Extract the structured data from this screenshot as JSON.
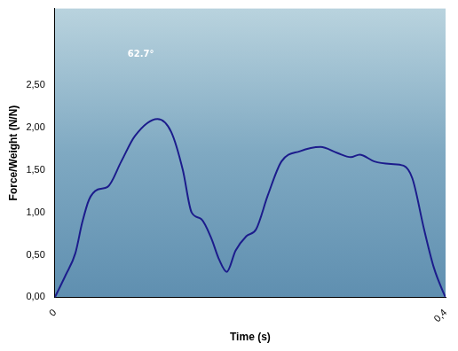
{
  "chart_data": {
    "type": "line",
    "x_label": "Time (s)",
    "y_label": "Force/Weight (N/N)",
    "annotation": "62.7°",
    "x": [
      0,
      0.011,
      0.021,
      0.028,
      0.035,
      0.044,
      0.054,
      0.068,
      0.082,
      0.105,
      0.119,
      0.131,
      0.14,
      0.15,
      0.16,
      0.168,
      0.176,
      0.185,
      0.196,
      0.206,
      0.218,
      0.232,
      0.251,
      0.272,
      0.289,
      0.303,
      0.312,
      0.327,
      0.344,
      0.357,
      0.366,
      0.378,
      0.388,
      0.398,
      0.4
    ],
    "values": [
      0,
      0.26,
      0.52,
      0.88,
      1.15,
      1.27,
      1.3,
      1.6,
      1.9,
      2.1,
      1.95,
      1.5,
      1.0,
      0.92,
      0.7,
      0.45,
      0.3,
      0.55,
      0.72,
      0.8,
      1.2,
      1.6,
      1.72,
      1.77,
      1.7,
      1.65,
      1.68,
      1.6,
      1.57,
      1.55,
      1.4,
      0.8,
      0.35,
      0.05,
      0
    ],
    "color": "#1c1c8c",
    "xlim": [
      0,
      0.4
    ],
    "xticks": [
      0,
      {
        "value": 0.4,
        "label": "0,4"
      }
    ],
    "ylim": [
      0,
      3.4
    ],
    "yticks": [
      {
        "value": 0,
        "label": "0,00"
      },
      {
        "value": 0.5,
        "label": "0,50"
      },
      {
        "value": 1,
        "label": "1,00"
      },
      {
        "value": 1.5,
        "label": "1,50"
      },
      {
        "value": 2,
        "label": "2,00"
      },
      {
        "value": 2.5,
        "label": "2,50"
      }
    ],
    "grid": false
  }
}
